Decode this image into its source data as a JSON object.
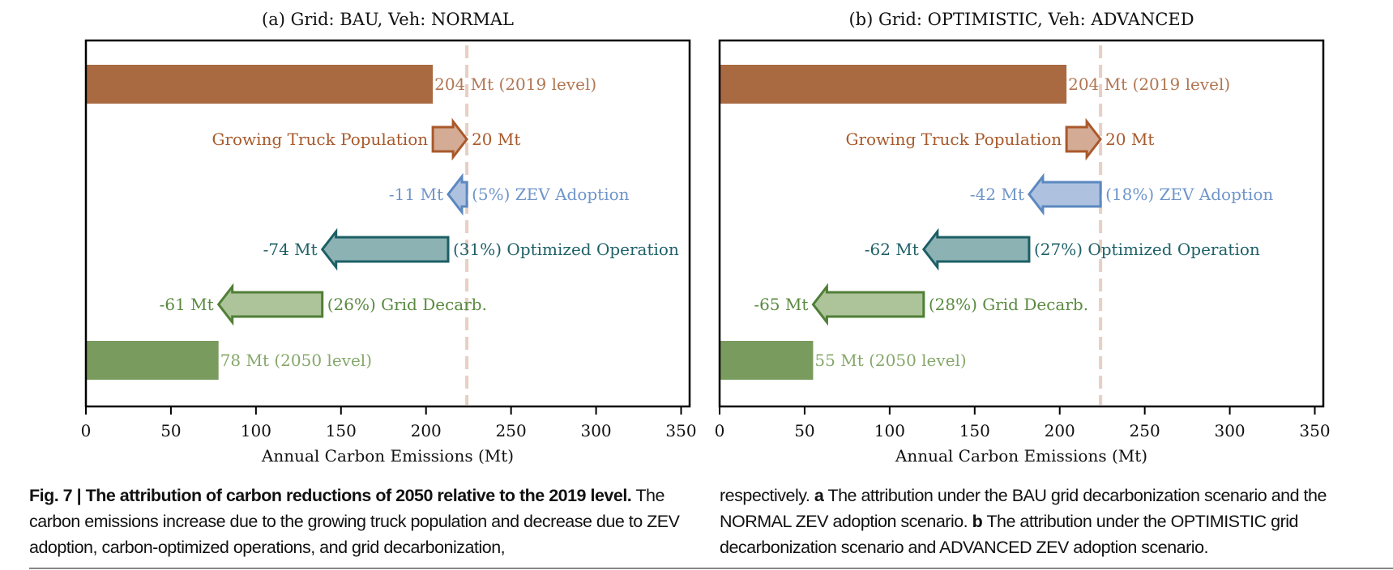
{
  "chart_data": [
    {
      "type": "bar",
      "subtype": "waterfall-attribution",
      "title": "(a) Grid: BAU, Veh: NORMAL",
      "xlabel": "Annual Carbon Emissions (Mt)",
      "ylabel": "",
      "xlim": [
        0,
        355
      ],
      "xticks": [
        0,
        50,
        100,
        150,
        200,
        250,
        300,
        350
      ],
      "grid": false,
      "reference_line": {
        "x": 224,
        "style": "dashed",
        "color": "#e8cfc3"
      },
      "rows": [
        {
          "kind": "bar",
          "start": 0,
          "value": 204,
          "label": "204 Mt (2019 level)",
          "color": "#a96a42",
          "label_color": "#b27551"
        },
        {
          "kind": "arrow",
          "start": 204,
          "value": 20,
          "left_label": "Growing Truck Population",
          "right_label": "20 Mt",
          "fill": "#d4ab94",
          "edge": "#a9592b",
          "label_color": "#a9592b"
        },
        {
          "kind": "arrow",
          "start": 224,
          "value": -11,
          "left_label": "-11 Mt",
          "right_label": "(5%) ZEV Adoption",
          "fill": "#aec2df",
          "edge": "#5b88c0",
          "label_color": "#6f95c9"
        },
        {
          "kind": "arrow",
          "start": 213,
          "value": -74,
          "left_label": "-74 Mt",
          "right_label": "(31%) Optimized Operation",
          "fill": "#8db2b3",
          "edge": "#1c5f66",
          "label_color": "#1f6168"
        },
        {
          "kind": "arrow",
          "start": 139,
          "value": -61,
          "left_label": "-61 Mt",
          "right_label": "(26%) Grid Decarb.",
          "fill": "#adc39a",
          "edge": "#4f7f36",
          "label_color": "#5a8a40"
        },
        {
          "kind": "bar",
          "start": 0,
          "value": 78,
          "label": "78 Mt (2050 level)",
          "color": "#7a9b5e",
          "label_color": "#86a86b"
        }
      ]
    },
    {
      "type": "bar",
      "subtype": "waterfall-attribution",
      "title": "(b) Grid: OPTIMISTIC, Veh: ADVANCED",
      "xlabel": "Annual Carbon Emissions (Mt)",
      "ylabel": "",
      "xlim": [
        0,
        355
      ],
      "xticks": [
        0,
        50,
        100,
        150,
        200,
        250,
        300,
        350
      ],
      "grid": false,
      "reference_line": {
        "x": 224,
        "style": "dashed",
        "color": "#e8cfc3"
      },
      "rows": [
        {
          "kind": "bar",
          "start": 0,
          "value": 204,
          "label": "204 Mt (2019 level)",
          "color": "#a96a42",
          "label_color": "#b27551"
        },
        {
          "kind": "arrow",
          "start": 204,
          "value": 20,
          "left_label": "Growing Truck Population",
          "right_label": "20 Mt",
          "fill": "#d4ab94",
          "edge": "#a9592b",
          "label_color": "#a9592b"
        },
        {
          "kind": "arrow",
          "start": 224,
          "value": -42,
          "left_label": "-42 Mt",
          "right_label": "(18%) ZEV Adoption",
          "fill": "#aec2df",
          "edge": "#5b88c0",
          "label_color": "#6f95c9"
        },
        {
          "kind": "arrow",
          "start": 182,
          "value": -62,
          "left_label": "-62 Mt",
          "right_label": "(27%) Optimized Operation",
          "fill": "#8db2b3",
          "edge": "#1c5f66",
          "label_color": "#1f6168"
        },
        {
          "kind": "arrow",
          "start": 120,
          "value": -65,
          "left_label": "-65 Mt",
          "right_label": "(28%) Grid Decarb.",
          "fill": "#adc39a",
          "edge": "#4f7f36",
          "label_color": "#5a8a40"
        },
        {
          "kind": "bar",
          "start": 0,
          "value": 55,
          "label": "55 Mt (2050 level)",
          "color": "#7a9b5e",
          "label_color": "#86a86b"
        }
      ]
    }
  ],
  "caption": {
    "fig_label": "Fig. 7 | The attribution of carbon reductions of 2050 relative to the 2019 level.",
    "part1": "The carbon emissions increase due to the growing truck population and decrease due to ZEV adoption, carbon-optimized operations, and grid decarbonization,",
    "part2": "respectively.",
    "a_label": "a",
    "a_text": "The attribution under the BAU grid decarbonization scenario and the NORMAL ZEV adoption scenario.",
    "b_label": "b",
    "b_text": "The attribution under the OPTIMISTIC grid decarbonization scenario and ADVANCED ZEV adoption scenario."
  }
}
